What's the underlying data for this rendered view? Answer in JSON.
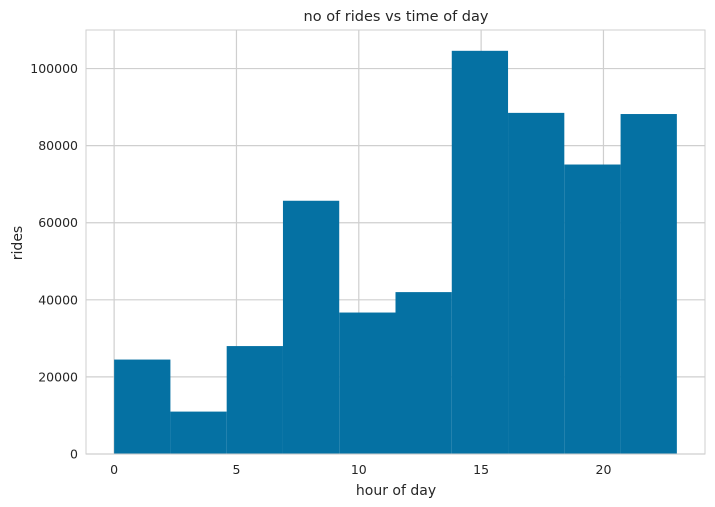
{
  "chart_data": {
    "type": "bar",
    "title": "no of rides vs time of day",
    "xlabel": "hour of day",
    "ylabel": "rides",
    "x_ticks": [
      0,
      5,
      10,
      15,
      20
    ],
    "y_ticks": [
      0,
      20000,
      40000,
      60000,
      80000,
      100000
    ],
    "xlim": [
      -1.15,
      24.15
    ],
    "ylim": [
      0,
      110000
    ],
    "grid": true,
    "bins": [
      {
        "x0": 0.0,
        "x1": 2.3,
        "value": 24500
      },
      {
        "x0": 2.3,
        "x1": 4.6,
        "value": 11000
      },
      {
        "x0": 4.6,
        "x1": 6.9,
        "value": 28000
      },
      {
        "x0": 6.9,
        "x1": 9.2,
        "value": 65700
      },
      {
        "x0": 9.2,
        "x1": 11.5,
        "value": 36700
      },
      {
        "x0": 11.5,
        "x1": 13.8,
        "value": 42000
      },
      {
        "x0": 13.8,
        "x1": 16.1,
        "value": 104600
      },
      {
        "x0": 16.1,
        "x1": 18.4,
        "value": 88500
      },
      {
        "x0": 18.4,
        "x1": 20.7,
        "value": 75100
      },
      {
        "x0": 20.7,
        "x1": 23.0,
        "value": 88200
      }
    ],
    "colors": {
      "bar": "#0571a3",
      "grid": "#cfcfcf",
      "frame": "#cfcfcf",
      "text": "#262626"
    }
  }
}
